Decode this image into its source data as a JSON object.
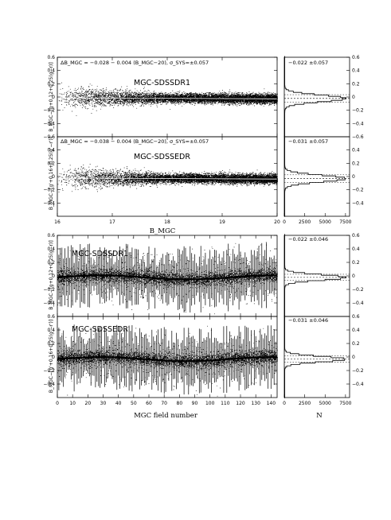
{
  "chart_data": {
    "type": "scatter",
    "layout": "multi-panel",
    "upper_block": {
      "xlabel": "B_MGC",
      "xlim": [
        16,
        20
      ],
      "x_ticks": [
        "16",
        "17",
        "18",
        "19",
        "20"
      ],
      "panels": [
        {
          "label": "MGC-SDSSDR1",
          "ylabel": "B_MGC−[g+0.12+0.25(g−r)]",
          "ylim": [
            -0.6,
            0.6
          ],
          "y_ticks": [
            "0.6",
            "0.4",
            "0.2",
            "0",
            "−0.2",
            "−0.4",
            "−0.6"
          ],
          "fit_text": "ΔB_MGC = −0.028 − 0.004 (B_MGC−20), σ_SYS=±0.057",
          "fit_intercept": -0.028,
          "fit_slope": -0.004,
          "scatter_sigma": 0.057,
          "hist_text": "−0.022 ±0.057",
          "hist_mean": -0.022,
          "hist_sigma": 0.057
        },
        {
          "label": "MGC-SDSSEDR",
          "ylabel": "B_MGC−[g'+0.16+0.25(g'−r')]",
          "ylim": [
            -0.6,
            0.6
          ],
          "y_ticks": [
            "0.4",
            "0.2",
            "0",
            "−0.2",
            "−0.4"
          ],
          "fit_text": "ΔB_MGC = −0.038 − 0.004 (B_MGC−20), σ_SYS=±0.057",
          "fit_intercept": -0.038,
          "fit_slope": -0.004,
          "scatter_sigma": 0.057,
          "hist_text": "−0.031 ±0.057",
          "hist_mean": -0.031,
          "hist_sigma": 0.057
        }
      ]
    },
    "lower_block": {
      "xlabel": "MGC field number",
      "xlim": [
        0,
        144
      ],
      "x_ticks": [
        "0",
        "10",
        "20",
        "30",
        "40",
        "50",
        "60",
        "70",
        "80",
        "90",
        "100",
        "110",
        "120",
        "130",
        "140"
      ],
      "panels": [
        {
          "label": "MGC-SDSSDR1",
          "ylabel": "B_MGC−[g+0.12+0.25(g−r)]",
          "ylim": [
            -0.6,
            0.6
          ],
          "y_ticks": [
            "0.6",
            "0.4",
            "0.2",
            "0",
            "−0.2",
            "−0.4"
          ],
          "hist_text": "−0.022 ±0.046",
          "hist_mean": -0.022,
          "hist_sigma": 0.046
        },
        {
          "label": "MGC-SDSSEDR",
          "ylabel": "B_MGC−[g'+0.16+0.25(g'−r')]",
          "ylim": [
            -0.6,
            0.6
          ],
          "y_ticks": [
            "0.6",
            "0.4",
            "0.2",
            "0",
            "−0.2",
            "−0.4"
          ],
          "hist_text": "−0.031 ±0.046",
          "hist_mean": -0.031,
          "hist_sigma": 0.046
        }
      ]
    },
    "histogram_axis": {
      "xlabel": "N",
      "xlim": [
        0,
        8000
      ],
      "x_ticks": [
        "0",
        "2500",
        "5000",
        "7500"
      ]
    }
  }
}
